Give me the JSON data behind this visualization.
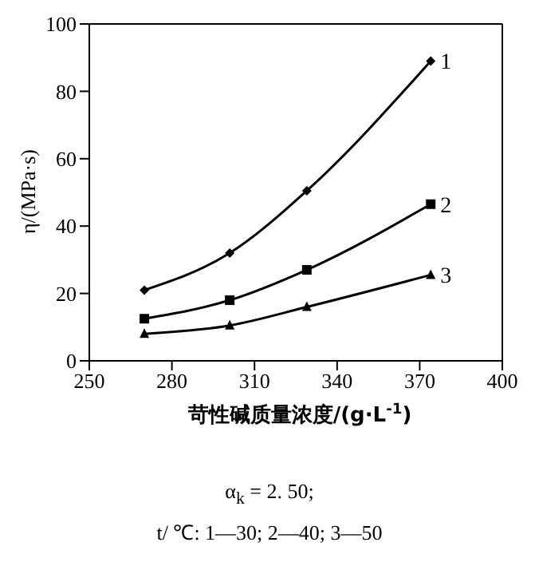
{
  "chart_data": {
    "type": "line",
    "xlabel": "苛性碱质量浓度/(g·L$^{-1}$)",
    "ylabel": "η/(MPa·s)",
    "x": [
      270,
      301,
      329,
      374
    ],
    "series": [
      {
        "name": "1",
        "color": "#000000",
        "marker": "diamond",
        "values": [
          21,
          32,
          50.5,
          89
        ]
      },
      {
        "name": "2",
        "color": "#000000",
        "marker": "square",
        "values": [
          12.5,
          18,
          27,
          46.5
        ]
      },
      {
        "name": "3",
        "color": "#000000",
        "marker": "triangle",
        "values": [
          8,
          10.5,
          16,
          25.5
        ]
      }
    ],
    "xlim": [
      250,
      400
    ],
    "xticks": [
      250,
      280,
      310,
      340,
      370,
      400
    ],
    "ylim": [
      0,
      100
    ],
    "yticks": [
      0,
      20,
      40,
      60,
      80,
      100
    ],
    "grid": false,
    "line_style": "solid",
    "annotations": [
      "α$_{k}$ = 2. 50;",
      "t/ ℃: 1—30; 2—40; 3—50"
    ]
  }
}
